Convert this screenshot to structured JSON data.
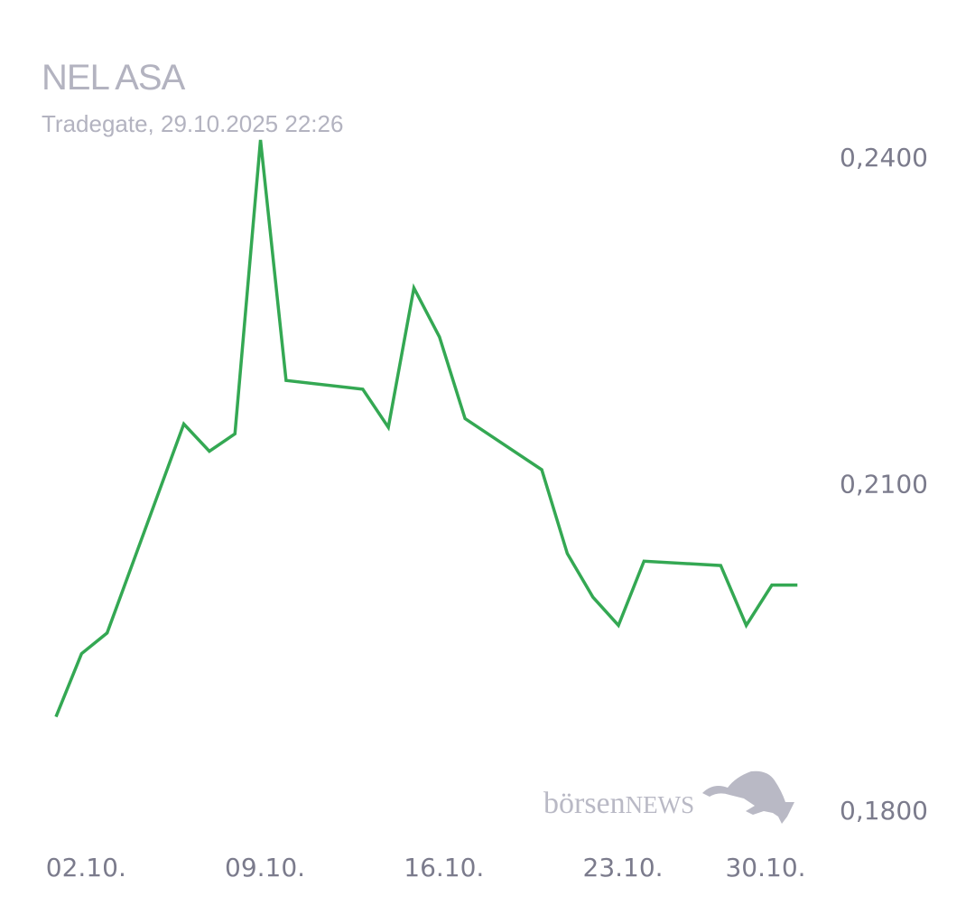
{
  "chart_data": {
    "type": "line",
    "title": "NEL ASA",
    "subtitle": "Tradegate, 29.10.2025 22:26",
    "xlabel": "",
    "ylabel": "",
    "x": [
      "01.10.",
      "02.10.",
      "03.10.",
      "06.10.",
      "07.10.",
      "08.10.",
      "09.10.",
      "10.10.",
      "13.10.",
      "14.10.",
      "15.10.",
      "16.10.",
      "17.10.",
      "20.10.",
      "21.10.",
      "22.10.",
      "23.10.",
      "24.10.",
      "27.10.",
      "28.10.",
      "29.10.",
      "30.10."
    ],
    "series": [
      {
        "values": [
          0.1885,
          0.1943,
          0.1962,
          0.2154,
          0.2129,
          0.2145,
          0.2415,
          0.2194,
          0.2186,
          0.2151,
          0.2279,
          0.2234,
          0.2159,
          0.2112,
          0.2035,
          0.1995,
          0.1969,
          0.2028,
          0.2024,
          0.1969,
          0.2006,
          0.2006
        ],
        "color": "#34a853"
      }
    ],
    "x_ticks": [
      "02.10.",
      "09.10.",
      "16.10.",
      "23.10.",
      "30.10."
    ],
    "y_ticks": [
      {
        "value": 0.24,
        "label": "0,2400"
      },
      {
        "value": 0.21,
        "label": "0,2100"
      },
      {
        "value": 0.18,
        "label": "0,1800"
      }
    ],
    "ylim": [
      0.18,
      0.24
    ],
    "grid": false,
    "legend": "none"
  },
  "logo": {
    "text_lower": "börsen",
    "text_upper": "NEWS"
  },
  "colors": {
    "line": "#34a853",
    "text": "#b3b3c0",
    "axis_text": "#7b7b8c",
    "logo": "#b9b9c5"
  }
}
